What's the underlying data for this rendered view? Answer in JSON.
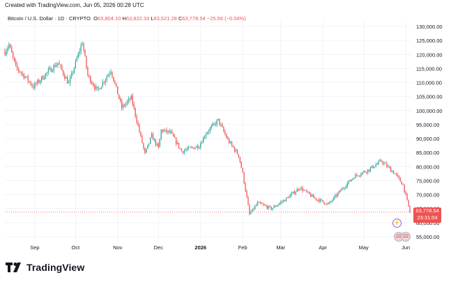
{
  "header": {
    "created": "Created with TradingView.com, Jun 05, 2026 00:28 UTC",
    "symbol": "Bitcoin / U.S. Dollar · 1D · CRYPTO",
    "open_label": "O",
    "open": "63,804.10",
    "high_label": "H",
    "high": "63,822.33",
    "low_label": "L",
    "low": "63,521.28",
    "close_label": "C",
    "close": "63,778.54",
    "change": "−25.56 (−0.04%)"
  },
  "price_tag": {
    "price": "63,778.54",
    "countdown": "23:31:04"
  },
  "brand": {
    "name": "TradingView"
  },
  "colors": {
    "up": "#26a69a",
    "down": "#ef5350",
    "grid": "#f0f3fa",
    "axis_text": "#131722",
    "lastline": "#ef5350"
  },
  "icons": [
    "tradingview-logo-icon",
    "event-icon",
    "us-flag-icon"
  ],
  "chart_data": {
    "type": "candlestick",
    "title": "Bitcoin / U.S. Dollar · 1D · CRYPTO",
    "ylim": [
      52500,
      132000
    ],
    "y_ticks": [
      55000,
      60000,
      65000,
      70000,
      75000,
      80000,
      85000,
      90000,
      95000,
      100000,
      105000,
      110000,
      115000,
      120000,
      125000,
      130000
    ],
    "y_tick_labels": [
      "55,000.00",
      "60,000.00",
      "65,000.00",
      "70,000.00",
      "75,000.00",
      "80,000.00",
      "85,000.00",
      "90,000.00",
      "95,000.00",
      "100,000.00",
      "105,000.00",
      "110,000.00",
      "115,000.00",
      "120,000.00",
      "125,000.00",
      "130,000.00"
    ],
    "x_labels": [
      {
        "date": "2025-09-01",
        "label": "Sep"
      },
      {
        "date": "2025-10-01",
        "label": "Oct"
      },
      {
        "date": "2025-11-01",
        "label": "Nov"
      },
      {
        "date": "2025-12-01",
        "label": "Dec"
      },
      {
        "date": "2026-01-01",
        "label": "2026"
      },
      {
        "date": "2026-02-01",
        "label": "Feb"
      },
      {
        "date": "2026-03-01",
        "label": "Mar"
      },
      {
        "date": "2026-04-01",
        "label": "Apr"
      },
      {
        "date": "2026-05-01",
        "label": "May"
      },
      {
        "date": "2026-06-01",
        "label": "Jun"
      }
    ],
    "start_date": "2025-08-10",
    "end_date": "2026-06-04",
    "trend": [
      {
        "date": "2025-08-10",
        "price": 121000
      },
      {
        "date": "2025-08-13",
        "price": 123500
      },
      {
        "date": "2025-08-18",
        "price": 115500
      },
      {
        "date": "2025-08-25",
        "price": 112000
      },
      {
        "date": "2025-08-31",
        "price": 108500
      },
      {
        "date": "2025-09-10",
        "price": 113500
      },
      {
        "date": "2025-09-18",
        "price": 117000
      },
      {
        "date": "2025-09-26",
        "price": 109500
      },
      {
        "date": "2025-10-06",
        "price": 124500
      },
      {
        "date": "2025-10-10",
        "price": 112500
      },
      {
        "date": "2025-10-17",
        "price": 107000
      },
      {
        "date": "2025-10-27",
        "price": 114500
      },
      {
        "date": "2025-11-04",
        "price": 101000
      },
      {
        "date": "2025-11-11",
        "price": 104500
      },
      {
        "date": "2025-11-21",
        "price": 84500
      },
      {
        "date": "2025-11-26",
        "price": 91000
      },
      {
        "date": "2025-12-01",
        "price": 86500
      },
      {
        "date": "2025-12-03",
        "price": 93000
      },
      {
        "date": "2025-12-10",
        "price": 92000
      },
      {
        "date": "2025-12-18",
        "price": 85500
      },
      {
        "date": "2025-12-31",
        "price": 87500
      },
      {
        "date": "2026-01-05",
        "price": 92000
      },
      {
        "date": "2026-01-14",
        "price": 96500
      },
      {
        "date": "2026-01-21",
        "price": 89500
      },
      {
        "date": "2026-01-29",
        "price": 84000
      },
      {
        "date": "2026-02-01",
        "price": 77500
      },
      {
        "date": "2026-02-06",
        "price": 63000
      },
      {
        "date": "2026-02-12",
        "price": 67000
      },
      {
        "date": "2026-02-22",
        "price": 65000
      },
      {
        "date": "2026-03-05",
        "price": 68500
      },
      {
        "date": "2026-03-15",
        "price": 72500
      },
      {
        "date": "2026-03-25",
        "price": 69000
      },
      {
        "date": "2026-04-05",
        "price": 66500
      },
      {
        "date": "2026-04-15",
        "price": 72000
      },
      {
        "date": "2026-04-24",
        "price": 76500
      },
      {
        "date": "2026-05-05",
        "price": 79000
      },
      {
        "date": "2026-05-14",
        "price": 82000
      },
      {
        "date": "2026-05-24",
        "price": 77500
      },
      {
        "date": "2026-05-30",
        "price": 73500
      },
      {
        "date": "2026-06-04",
        "price": 63778
      }
    ],
    "last_price": 63778.54
  }
}
